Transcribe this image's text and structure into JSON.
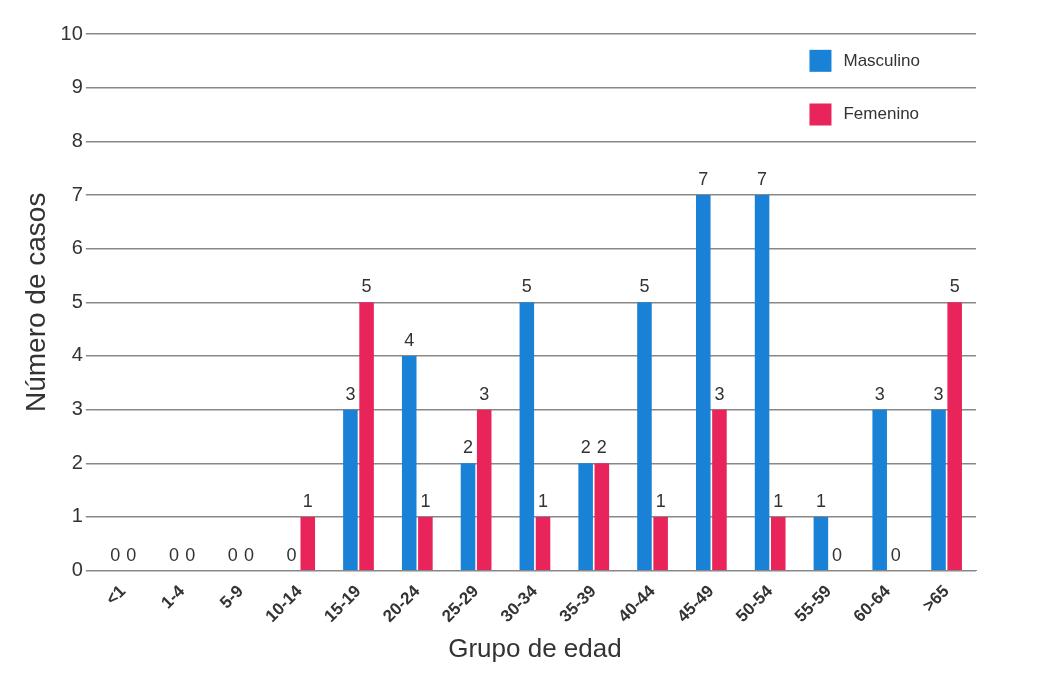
{
  "chart_data": {
    "type": "bar",
    "xlabel": "Grupo de edad",
    "ylabel": "Número de casos",
    "categories": [
      "<1",
      "1-4",
      "5-9",
      "10-14",
      "15-19",
      "20-24",
      "25-29",
      "30-34",
      "35-39",
      "40-44",
      "45-49",
      "50-54",
      "55-59",
      "60-64",
      ">65"
    ],
    "series": [
      {
        "name": "Masculino",
        "color": "#1a82d6",
        "values": [
          0,
          0,
          0,
          0,
          3,
          4,
          2,
          5,
          2,
          5,
          7,
          7,
          1,
          3,
          3
        ]
      },
      {
        "name": "Femenino",
        "color": "#e8245a",
        "values": [
          0,
          0,
          0,
          1,
          5,
          1,
          3,
          1,
          2,
          1,
          3,
          1,
          0,
          0,
          5
        ]
      }
    ],
    "ylim": [
      0,
      10
    ],
    "yticks": [
      0,
      1,
      2,
      3,
      4,
      5,
      6,
      7,
      8,
      9,
      10
    ],
    "grid": "y",
    "legend": "top right",
    "data_labels": true
  }
}
